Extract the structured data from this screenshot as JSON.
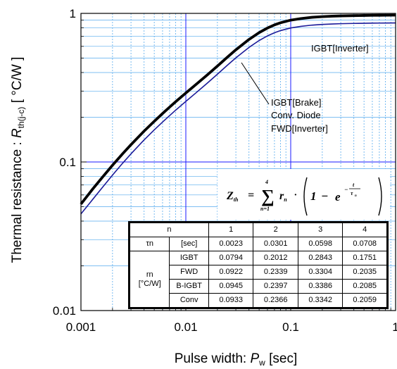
{
  "chart_data": {
    "type": "line",
    "title": "",
    "xlabel": {
      "prefix": "Pulse width: ",
      "symbol": "P",
      "sub": "w",
      "unit": " [sec]"
    },
    "ylabel": {
      "prefix": "Thermal resistance  :  ",
      "symbol": "R",
      "sub": "th(j-c)",
      "unit": "  [ °C/W ]"
    },
    "xscale": "log",
    "yscale": "log",
    "xlim": [
      0.001,
      1
    ],
    "ylim": [
      0.01,
      1
    ],
    "xticks": [
      0.001,
      0.01,
      0.1,
      1
    ],
    "xtick_labels": [
      "0.001",
      "0.01",
      "0.1",
      "1"
    ],
    "yticks": [
      0.01,
      0.1,
      1
    ],
    "ytick_labels": [
      "0.01",
      "0.1",
      "1"
    ],
    "grid": true,
    "colors": {
      "major_grid": "#1a1aff",
      "minor_grid": "#55aaee",
      "igbt_inverter": "#1a1a99",
      "brake_conv_fwd": "#000000"
    },
    "series": [
      {
        "name": "IGBT[Inverter]",
        "x": [
          0.001,
          0.0013,
          0.0016,
          0.002,
          0.0025,
          0.003,
          0.004,
          0.005,
          0.006,
          0.007,
          0.008,
          0.01,
          0.0125,
          0.016,
          0.02,
          0.025,
          0.03,
          0.04,
          0.05,
          0.06,
          0.07,
          0.08,
          0.1,
          0.125,
          0.16,
          0.2,
          0.25,
          0.3,
          0.4,
          0.5,
          0.6,
          0.7,
          0.8,
          1.0
        ],
        "values": [
          0.0447,
          0.0562,
          0.0673,
          0.0816,
          0.0982,
          0.1134,
          0.1407,
          0.1644,
          0.1856,
          0.2051,
          0.2232,
          0.2555,
          0.292,
          0.339,
          0.3896,
          0.4489,
          0.5023,
          0.5902,
          0.6568,
          0.7057,
          0.741,
          0.7661,
          0.798,
          0.8178,
          0.8339,
          0.8425,
          0.8488,
          0.8525,
          0.8559,
          0.8581,
          0.8597,
          0.8607,
          0.8614,
          0.8624
        ]
      },
      {
        "name": "IGBT[Brake]\nConv. Diode\nFWD[Inverter]",
        "label_lines": [
          "IGBT[Brake]",
          "Conv. Diode",
          "FWD[Inverter]"
        ],
        "x": [
          0.001,
          0.0013,
          0.0016,
          0.002,
          0.0025,
          0.003,
          0.004,
          0.005,
          0.006,
          0.007,
          0.008,
          0.01,
          0.0125,
          0.016,
          0.02,
          0.025,
          0.03,
          0.04,
          0.05,
          0.06,
          0.07,
          0.08,
          0.1,
          0.125,
          0.16,
          0.2,
          0.25,
          0.3,
          0.4,
          0.5,
          0.6,
          0.7,
          0.8,
          1.0
        ],
        "values": [
          0.0521,
          0.066,
          0.0788,
          0.0951,
          0.1137,
          0.1307,
          0.1613,
          0.1879,
          0.2119,
          0.234,
          0.2544,
          0.2912,
          0.3323,
          0.3852,
          0.4421,
          0.5088,
          0.5688,
          0.6675,
          0.7422,
          0.7971,
          0.8367,
          0.8649,
          0.9007,
          0.923,
          0.9411,
          0.9508,
          0.9578,
          0.962,
          0.9659,
          0.9683,
          0.9701,
          0.9712,
          0.972,
          0.9731
        ]
      }
    ],
    "equation": {
      "lhs": "Z",
      "lhs_sub": "th",
      "sum_from": "n=1",
      "sum_to": "4",
      "term": "r",
      "term_sub": "n"
    },
    "table": {
      "header": [
        "n",
        "",
        "1",
        "2",
        "3",
        "4"
      ],
      "tau_row": {
        "label": "τn",
        "unit": "[sec]",
        "values": [
          "0.0023",
          "0.0301",
          "0.0598",
          "0.0708"
        ]
      },
      "r_label": [
        "rn",
        "[°C/W]"
      ],
      "r_rows": [
        {
          "type": "IGBT",
          "values": [
            "0.0794",
            "0.2012",
            "0.2843",
            "0.1751"
          ]
        },
        {
          "type": "FWD",
          "values": [
            "0.0922",
            "0.2339",
            "0.3304",
            "0.2035"
          ]
        },
        {
          "type": "B-IGBT",
          "values": [
            "0.0945",
            "0.2397",
            "0.3386",
            "0.2085"
          ]
        },
        {
          "type": "Conv",
          "values": [
            "0.0933",
            "0.2366",
            "0.3342",
            "0.2059"
          ]
        }
      ]
    }
  }
}
